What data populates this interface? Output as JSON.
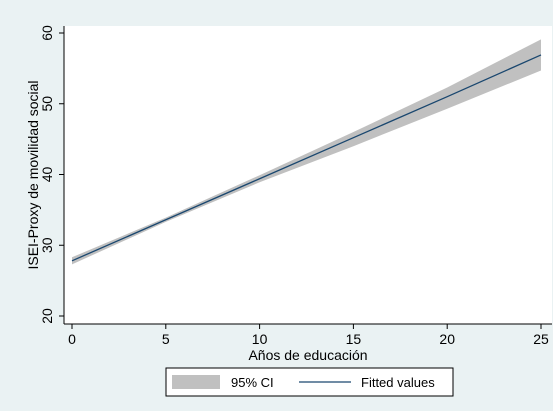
{
  "chart_data": {
    "type": "line",
    "title": "",
    "xlabel": "Años de educación",
    "ylabel": "ISEI-Proxy de movilidad social",
    "xlim": [
      0,
      25
    ],
    "ylim": [
      20,
      60
    ],
    "xticks": [
      0,
      5,
      10,
      15,
      20,
      25
    ],
    "yticks": [
      20,
      30,
      40,
      50,
      60
    ],
    "grid": false,
    "legend_position": "bottom",
    "series": [
      {
        "name": "95% CI",
        "kind": "band",
        "color": "#c0c0c0",
        "x": [
          0,
          5,
          10,
          15,
          20,
          25
        ],
        "lower": [
          27.3,
          33.3,
          38.9,
          44.0,
          49.3,
          54.7
        ],
        "upper": [
          28.3,
          33.9,
          39.9,
          46.0,
          52.3,
          59.1
        ]
      },
      {
        "name": "Fitted values",
        "kind": "line",
        "color": "#1a476f",
        "x": [
          0,
          5,
          10,
          15,
          20,
          25
        ],
        "y": [
          27.8,
          33.6,
          39.4,
          45.2,
          51.0,
          56.9
        ]
      }
    ]
  }
}
